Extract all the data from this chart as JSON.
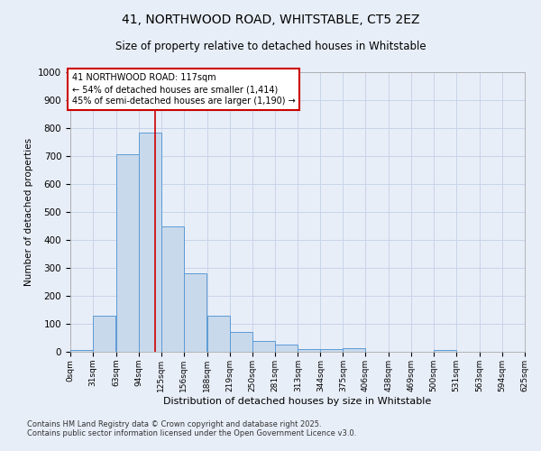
{
  "title_line1": "41, NORTHWOOD ROAD, WHITSTABLE, CT5 2EZ",
  "title_line2": "Size of property relative to detached houses in Whitstable",
  "xlabel": "Distribution of detached houses by size in Whitstable",
  "ylabel": "Number of detached properties",
  "bin_labels": [
    "0sqm",
    "31sqm",
    "63sqm",
    "94sqm",
    "125sqm",
    "156sqm",
    "188sqm",
    "219sqm",
    "250sqm",
    "281sqm",
    "313sqm",
    "344sqm",
    "375sqm",
    "406sqm",
    "438sqm",
    "469sqm",
    "500sqm",
    "531sqm",
    "563sqm",
    "594sqm",
    "625sqm"
  ],
  "bin_edges": [
    0,
    31,
    63,
    94,
    125,
    156,
    188,
    219,
    250,
    281,
    313,
    344,
    375,
    406,
    438,
    469,
    500,
    531,
    563,
    594,
    625
  ],
  "bar_values": [
    8,
    130,
    705,
    785,
    450,
    280,
    130,
    70,
    38,
    25,
    10,
    10,
    12,
    0,
    0,
    0,
    8,
    0,
    0,
    0,
    0
  ],
  "bar_color": "#c9d9ec",
  "bar_edge_color": "#5b9bd5",
  "red_line_x": 117,
  "red_line_color": "#cc0000",
  "annotation_text_line1": "41 NORTHWOOD ROAD: 117sqm",
  "annotation_text_line2": "← 54% of detached houses are smaller (1,414)",
  "annotation_text_line3": "45% of semi-detached houses are larger (1,190) →",
  "annotation_box_facecolor": "#ffffff",
  "annotation_box_edgecolor": "#cc0000",
  "ylim": [
    0,
    1000
  ],
  "xlim_left": 0,
  "xlim_right": 625,
  "grid_color": "#c8d4e8",
  "background_color": "#e8eef8",
  "footer_line1": "Contains HM Land Registry data © Crown copyright and database right 2025.",
  "footer_line2": "Contains public sector information licensed under the Open Government Licence v3.0."
}
